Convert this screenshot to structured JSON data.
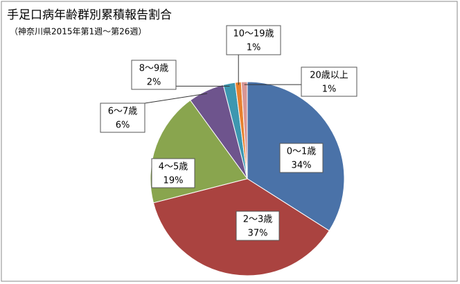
{
  "chart_data": {
    "type": "pie",
    "title": "手足口病年齢群別累積報告割合",
    "subtitle": "（神奈川県2015年第1週～第26週）",
    "categories": [
      "0～1歳",
      "2～3歳",
      "4～5歳",
      "6～7歳",
      "8～9歳",
      "10～19歳",
      "20歳以上"
    ],
    "values": [
      34,
      37,
      19,
      6,
      2,
      1,
      1
    ],
    "value_labels": [
      "34%",
      "37%",
      "19%",
      "6%",
      "2%",
      "1%",
      "1%"
    ],
    "colors": [
      "#4a72a8",
      "#aa4340",
      "#89a54e",
      "#6e548d",
      "#3d97b0",
      "#e7812f",
      "#d99694"
    ]
  }
}
